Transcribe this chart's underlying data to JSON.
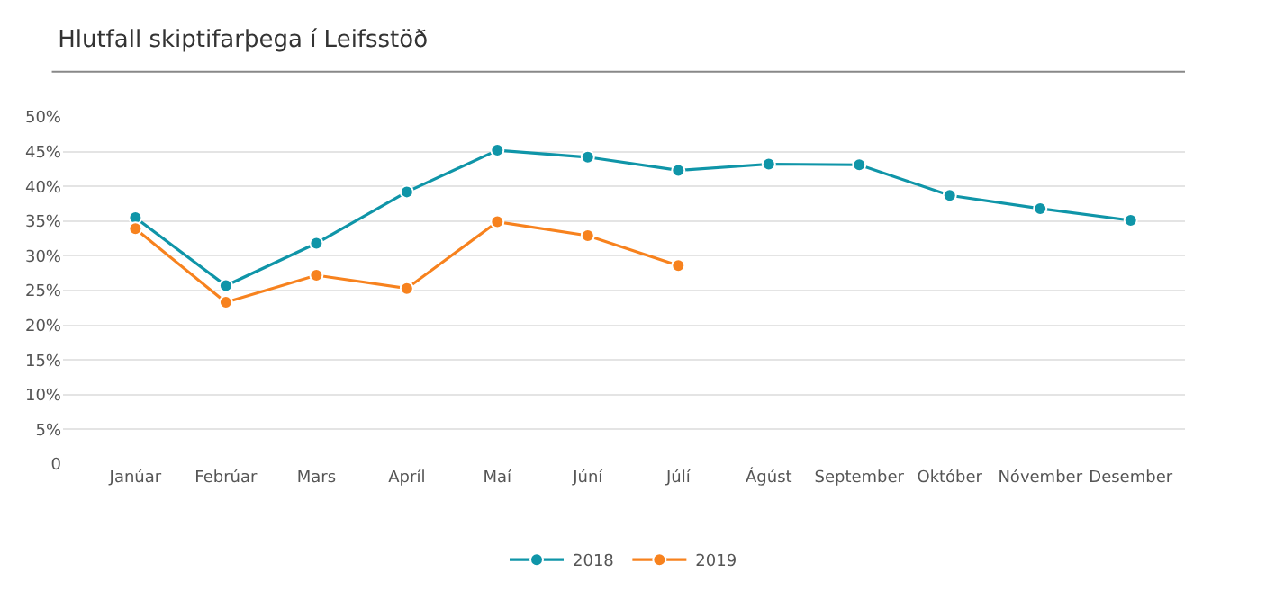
{
  "chart_data": {
    "type": "line",
    "title": "Hlutfall skiptifarþega í Leifsstöð",
    "categories": [
      "Janúar",
      "Febrúar",
      "Mars",
      "Apríl",
      "Maí",
      "Júní",
      "Júlí",
      "Ágúst",
      "September",
      "Október",
      "Nóvember",
      "Desember"
    ],
    "series": [
      {
        "name": "2018",
        "color": "#0f95a8",
        "values": [
          35.5,
          25.7,
          31.8,
          39.2,
          45.2,
          44.2,
          42.3,
          43.2,
          43.1,
          38.7,
          36.8,
          35.1
        ]
      },
      {
        "name": "2019",
        "color": "#f7821e",
        "values": [
          33.9,
          23.3,
          27.2,
          25.3,
          34.9,
          32.9,
          28.6,
          null,
          null,
          null,
          null,
          null
        ]
      }
    ],
    "ylim": [
      0,
      50
    ],
    "yticks": [
      0,
      {
        "value": 5,
        "label": "5%"
      },
      {
        "value": 10,
        "label": "10%"
      },
      {
        "value": 15,
        "label": "15%"
      },
      {
        "value": 20,
        "label": "20%"
      },
      {
        "value": 25,
        "label": "25%"
      },
      {
        "value": 30,
        "label": "30%"
      },
      {
        "value": 35,
        "label": "35%"
      },
      {
        "value": 40,
        "label": "40%"
      },
      {
        "value": 45,
        "label": "45%"
      },
      {
        "value": 50,
        "label": "50%"
      }
    ],
    "grid": "y",
    "legend": "bottom",
    "marker": "circle",
    "line_style": "solid"
  }
}
